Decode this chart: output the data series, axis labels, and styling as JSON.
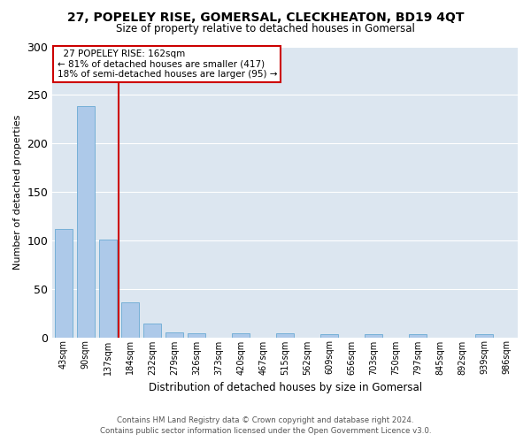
{
  "title": "27, POPELEY RISE, GOMERSAL, CLECKHEATON, BD19 4QT",
  "subtitle": "Size of property relative to detached houses in Gomersal",
  "xlabel": "Distribution of detached houses by size in Gomersal",
  "ylabel": "Number of detached properties",
  "footer_line1": "Contains HM Land Registry data © Crown copyright and database right 2024.",
  "footer_line2": "Contains public sector information licensed under the Open Government Licence v3.0.",
  "annotation_line1": "  27 POPELEY RISE: 162sqm",
  "annotation_line2": "← 81% of detached houses are smaller (417)",
  "annotation_line3": "18% of semi-detached houses are larger (95) →",
  "bar_color": "#adc9e9",
  "bar_edge_color": "#6aaad4",
  "vline_color": "#cc0000",
  "background_color": "#dce6f0",
  "grid_color": "#ffffff",
  "categories": [
    "43sqm",
    "90sqm",
    "137sqm",
    "184sqm",
    "232sqm",
    "279sqm",
    "326sqm",
    "373sqm",
    "420sqm",
    "467sqm",
    "515sqm",
    "562sqm",
    "609sqm",
    "656sqm",
    "703sqm",
    "750sqm",
    "797sqm",
    "845sqm",
    "892sqm",
    "939sqm",
    "986sqm"
  ],
  "values": [
    112,
    238,
    101,
    36,
    14,
    5,
    4,
    0,
    4,
    0,
    4,
    0,
    3,
    0,
    3,
    0,
    3,
    0,
    0,
    3,
    0
  ],
  "ylim": [
    0,
    300
  ],
  "yticks": [
    0,
    50,
    100,
    150,
    200,
    250,
    300
  ],
  "vline_index": 2.5,
  "figsize": [
    6.0,
    5.0
  ],
  "dpi": 100
}
